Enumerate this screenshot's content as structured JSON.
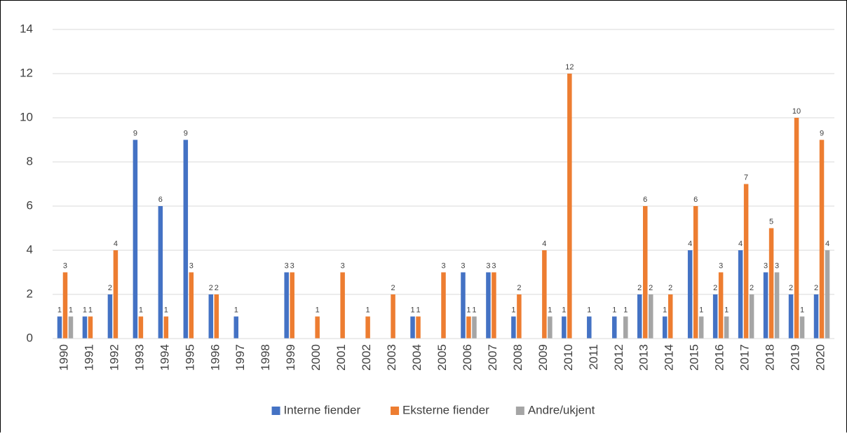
{
  "chart_data": {
    "type": "bar",
    "categories": [
      "1990",
      "1991",
      "1992",
      "1993",
      "1994",
      "1995",
      "1996",
      "1997",
      "1998",
      "1999",
      "2000",
      "2001",
      "2002",
      "2003",
      "2004",
      "2005",
      "2006",
      "2007",
      "2008",
      "2009",
      "2010",
      "2011",
      "2012",
      "2013",
      "2014",
      "2015",
      "2016",
      "2017",
      "2018",
      "2019",
      "2020"
    ],
    "series": [
      {
        "name": "Interne fiender",
        "color": "#4472c4",
        "values": [
          1,
          1,
          2,
          9,
          6,
          9,
          2,
          1,
          null,
          3,
          null,
          null,
          null,
          null,
          1,
          null,
          3,
          3,
          1,
          null,
          1,
          1,
          1,
          2,
          1,
          4,
          2,
          4,
          3,
          2,
          2
        ]
      },
      {
        "name": "Eksterne fiender",
        "color": "#ed7d31",
        "values": [
          3,
          1,
          4,
          1,
          1,
          3,
          2,
          null,
          null,
          3,
          1,
          3,
          1,
          2,
          1,
          3,
          1,
          3,
          2,
          4,
          12,
          null,
          null,
          6,
          2,
          6,
          3,
          7,
          5,
          10,
          9
        ]
      },
      {
        "name": "Andre/ukjent",
        "color": "#a5a5a5",
        "values": [
          1,
          null,
          null,
          null,
          null,
          null,
          null,
          null,
          null,
          null,
          null,
          null,
          null,
          null,
          null,
          null,
          1,
          null,
          null,
          1,
          null,
          null,
          1,
          2,
          null,
          1,
          1,
          2,
          3,
          1,
          4
        ]
      }
    ],
    "ylim": [
      0,
      14
    ],
    "yticks": [
      0,
      2,
      4,
      6,
      8,
      10,
      12,
      14
    ],
    "grid": true,
    "legend": "bottom"
  }
}
